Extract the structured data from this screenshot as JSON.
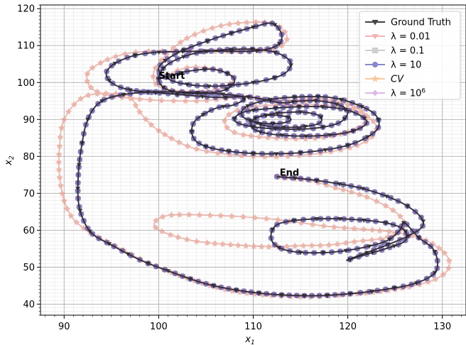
{
  "chart_data": {
    "type": "line",
    "xlabel": "x",
    "xlabel_sub": "1",
    "ylabel": "x",
    "ylabel_sub": "2",
    "xlim": [
      87.5,
      132.5
    ],
    "ylim": [
      37,
      121
    ],
    "xticks": [
      90,
      100,
      110,
      120,
      130
    ],
    "yticks": [
      40,
      50,
      60,
      70,
      80,
      90,
      100,
      110,
      120
    ],
    "grid": true,
    "minor_grid": true,
    "legend_placement": "top-right",
    "annotations": [
      {
        "text": "Start",
        "x": 100,
        "y": 101
      },
      {
        "text": "End",
        "x": 112.8,
        "y": 74.8
      }
    ],
    "colors": {
      "ground_truth": "#222222",
      "lambda_001": "#f08080",
      "lambda_01": "#b0b0b0",
      "lambda_10": "#3a3aa8",
      "cv": "#f4a460",
      "lambda_1e6": "#c88ad8"
    },
    "series": [
      {
        "name": "Ground Truth",
        "label_parts": [
          {
            "t": "Ground Truth"
          }
        ],
        "marker": "triangle-down",
        "color": "#222222",
        "curve": 0
      },
      {
        "name": "λ = 0.01",
        "label_parts": [
          {
            "t": "λ = 0.01"
          }
        ],
        "marker": "triangle-down",
        "color": "#f08080",
        "curve": 0
      },
      {
        "name": "λ = 0.1",
        "label_parts": [
          {
            "t": "λ = 0.1"
          }
        ],
        "marker": "square",
        "color": "#b0b0b0",
        "curve": 0
      },
      {
        "name": "λ = 10",
        "label_parts": [
          {
            "t": "λ = 10"
          }
        ],
        "marker": "circle",
        "color": "#3a3aa8",
        "curve": 0
      },
      {
        "name": "CV",
        "label_parts": [
          {
            "t": "CV",
            "italic": true
          }
        ],
        "marker": "star",
        "color": "#f4a460",
        "curve": 1
      },
      {
        "name": "λ = 10^6",
        "label_parts": [
          {
            "t": "λ = 10"
          },
          {
            "t": "6",
            "sup": true
          }
        ],
        "marker": "diamond",
        "color": "#c88ad8",
        "curve": 1
      }
    ],
    "curves": [
      {
        "description": "main trajectory",
        "points": [
          [
            100,
            101
          ],
          [
            103,
            103
          ],
          [
            106,
            103.5
          ],
          [
            108,
            101
          ],
          [
            107,
            98
          ],
          [
            104,
            97
          ],
          [
            101,
            98
          ],
          [
            100,
            101
          ],
          [
            101,
            105
          ],
          [
            104,
            108
          ],
          [
            108,
            109
          ],
          [
            111,
            108.8
          ],
          [
            113,
            107.5
          ],
          [
            114,
            105
          ],
          [
            113,
            102
          ],
          [
            110,
            100
          ],
          [
            106,
            99
          ],
          [
            103,
            99.5
          ],
          [
            101,
            101
          ],
          [
            100,
            104
          ],
          [
            102,
            108
          ],
          [
            106,
            112
          ],
          [
            110,
            115
          ],
          [
            112,
            116
          ],
          [
            113,
            113
          ],
          [
            112.5,
            110
          ],
          [
            110,
            108.5
          ],
          [
            105,
            108.5
          ],
          [
            99,
            108
          ],
          [
            96,
            106
          ],
          [
            94.5,
            103
          ],
          [
            95,
            100
          ],
          [
            97,
            98
          ],
          [
            101,
            97
          ],
          [
            106,
            96
          ],
          [
            109,
            96.2
          ],
          [
            111,
            95.5
          ],
          [
            113,
            94.5
          ],
          [
            115,
            95
          ],
          [
            117,
            95
          ],
          [
            119,
            94
          ],
          [
            120,
            92
          ],
          [
            119,
            89
          ],
          [
            116,
            87.5
          ],
          [
            112,
            87.5
          ],
          [
            109,
            88.5
          ],
          [
            108,
            90
          ],
          [
            109,
            92
          ],
          [
            112,
            93
          ],
          [
            116,
            93.5
          ],
          [
            119,
            93
          ],
          [
            121,
            91.5
          ],
          [
            122,
            89
          ],
          [
            120,
            86.5
          ],
          [
            116,
            85.5
          ],
          [
            112,
            86
          ],
          [
            110,
            87.5
          ],
          [
            110,
            90
          ],
          [
            112,
            91.5
          ],
          [
            115,
            92
          ],
          [
            117,
            91
          ],
          [
            117,
            89
          ],
          [
            115,
            88
          ],
          [
            112,
            88
          ],
          [
            110,
            89.5
          ],
          [
            111,
            91
          ],
          [
            113,
            91
          ],
          [
            114,
            90
          ],
          [
            113,
            89
          ],
          [
            111,
            89
          ],
          [
            109,
            90.5
          ],
          [
            109,
            93
          ],
          [
            111,
            95
          ],
          [
            114,
            96
          ],
          [
            118,
            96
          ],
          [
            121,
            94
          ],
          [
            123,
            91
          ],
          [
            123,
            87
          ],
          [
            120,
            83
          ],
          [
            115,
            81
          ],
          [
            110,
            80.8
          ],
          [
            106,
            82
          ],
          [
            104,
            84
          ],
          [
            103.5,
            87
          ],
          [
            104,
            90
          ],
          [
            106,
            93
          ],
          [
            108,
            94
          ],
          [
            109,
            96
          ],
          [
            106,
            97
          ],
          [
            101,
            97.5
          ],
          [
            97,
            97
          ],
          [
            94,
            95
          ],
          [
            92.5,
            90
          ],
          [
            91.8,
            82
          ],
          [
            91.5,
            75
          ],
          [
            91.5,
            68
          ],
          [
            92,
            63
          ],
          [
            93,
            59
          ],
          [
            95,
            56
          ],
          [
            98,
            52
          ],
          [
            101,
            49
          ],
          [
            105,
            45.5
          ],
          [
            109,
            43.5
          ],
          [
            113,
            42.5
          ],
          [
            117,
            42.3
          ],
          [
            121,
            43
          ],
          [
            124,
            44
          ],
          [
            127,
            45.5
          ],
          [
            129,
            48
          ],
          [
            129.5,
            51
          ],
          [
            129,
            55
          ],
          [
            127.5,
            58
          ],
          [
            126,
            62
          ],
          [
            125.5,
            60
          ],
          [
            124,
            57
          ],
          [
            121,
            55
          ],
          [
            118,
            54
          ],
          [
            115,
            54
          ],
          [
            113,
            55
          ],
          [
            112,
            57
          ],
          [
            112,
            60
          ],
          [
            113,
            62
          ],
          [
            116,
            63
          ],
          [
            120,
            63
          ],
          [
            124,
            62
          ],
          [
            126,
            60
          ],
          [
            126,
            57
          ],
          [
            124,
            55
          ],
          [
            122,
            53.5
          ],
          [
            120,
            52
          ],
          [
            126,
            58
          ],
          [
            128,
            62
          ],
          [
            126,
            67
          ],
          [
            122,
            71
          ],
          [
            118,
            73
          ],
          [
            115,
            74
          ],
          [
            112.5,
            74.5
          ]
        ]
      },
      {
        "description": "outer deviated trajectory",
        "points": [
          [
            100,
            101
          ],
          [
            103,
            104
          ],
          [
            106,
            103.5
          ],
          [
            108,
            101
          ],
          [
            106,
            98
          ],
          [
            103,
            97.5
          ],
          [
            100,
            99
          ],
          [
            99.5,
            103
          ],
          [
            101,
            108
          ],
          [
            103,
            112
          ],
          [
            106,
            115
          ],
          [
            109,
            116.2
          ],
          [
            112,
            116
          ],
          [
            113.5,
            113
          ],
          [
            113,
            110
          ],
          [
            110,
            108.5
          ],
          [
            104,
            108.5
          ],
          [
            97,
            108
          ],
          [
            93,
            104
          ],
          [
            92.5,
            100
          ],
          [
            94,
            97
          ],
          [
            98,
            95.5
          ],
          [
            104,
            95
          ],
          [
            109,
            96
          ],
          [
            113,
            95
          ],
          [
            117,
            95.5
          ],
          [
            120,
            94
          ],
          [
            122,
            91
          ],
          [
            121,
            87.5
          ],
          [
            117,
            85
          ],
          [
            112,
            85
          ],
          [
            108,
            86.5
          ],
          [
            107,
            90
          ],
          [
            109,
            93
          ],
          [
            114,
            94
          ],
          [
            119,
            93.5
          ],
          [
            122,
            91
          ],
          [
            123,
            87
          ],
          [
            121,
            83
          ],
          [
            116,
            80.5
          ],
          [
            110,
            80
          ],
          [
            104,
            82
          ],
          [
            100,
            87
          ],
          [
            98,
            92
          ],
          [
            97,
            96
          ],
          [
            95,
            97
          ],
          [
            92,
            96
          ],
          [
            90,
            90
          ],
          [
            89.5,
            82
          ],
          [
            89.5,
            75
          ],
          [
            90,
            68
          ],
          [
            91,
            63
          ],
          [
            93,
            59
          ],
          [
            96,
            55
          ],
          [
            99,
            51
          ],
          [
            103,
            47
          ],
          [
            107,
            44
          ],
          [
            111,
            42.5
          ],
          [
            116,
            42
          ],
          [
            121,
            42.8
          ],
          [
            125,
            44
          ],
          [
            128.5,
            46
          ],
          [
            130.5,
            49
          ],
          [
            130.5,
            53
          ],
          [
            128.5,
            57
          ],
          [
            126,
            59
          ],
          [
            123,
            60
          ],
          [
            118,
            61
          ],
          [
            112,
            63
          ],
          [
            106,
            64
          ],
          [
            101,
            64
          ],
          [
            99.5,
            61.5
          ],
          [
            101,
            59
          ],
          [
            104,
            57
          ],
          [
            108,
            56
          ],
          [
            112,
            55.5
          ],
          [
            115,
            55.8
          ],
          [
            118,
            56
          ],
          [
            121,
            57
          ],
          [
            124,
            58
          ],
          [
            126,
            61
          ],
          [
            125,
            65
          ],
          [
            122,
            69
          ],
          [
            118,
            72
          ],
          [
            116,
            73.5
          ],
          [
            114,
            74
          ],
          [
            112.5,
            74.5
          ]
        ]
      }
    ]
  }
}
